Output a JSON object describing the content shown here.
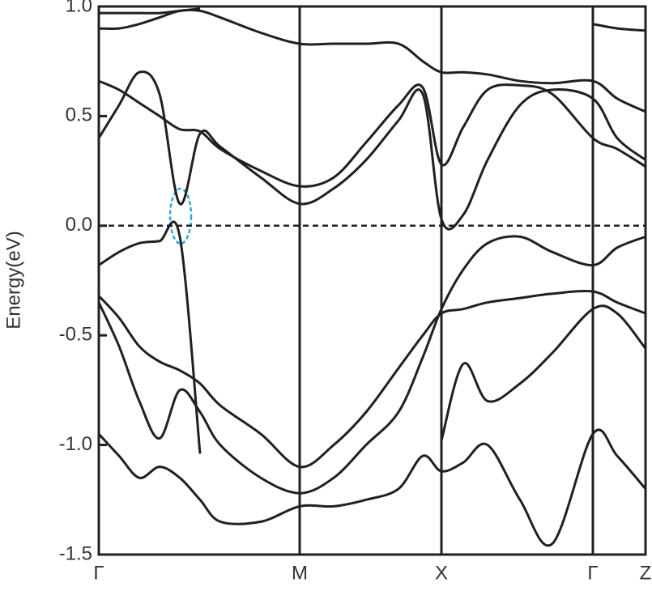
{
  "chart_data": {
    "type": "line",
    "ylabel": "Energy(eV)",
    "x": [
      0,
      25,
      50,
      75,
      100,
      125,
      150,
      200,
      248,
      290,
      330,
      370,
      400,
      423,
      450,
      480,
      520,
      560,
      610,
      640,
      675
    ],
    "xlim": [
      0,
      675
    ],
    "xticks": [
      {
        "value": 0,
        "label": "Γ"
      },
      {
        "value": 248,
        "label": "M"
      },
      {
        "value": 423,
        "label": "X"
      },
      {
        "value": 610,
        "label": "Γ"
      },
      {
        "value": 675,
        "label": "Z"
      }
    ],
    "ylim": [
      -1.5,
      1.0
    ],
    "yticks": [
      {
        "value": 1.0,
        "label": "1.0"
      },
      {
        "value": 0.5,
        "label": "0.5"
      },
      {
        "value": 0,
        "label": "0.0"
      },
      {
        "value": -0.5,
        "label": "-0.5"
      },
      {
        "value": -1.0,
        "label": "-1.0"
      },
      {
        "value": -1.5,
        "label": "-1.5"
      }
    ],
    "series": [
      {
        "color": "#231f20",
        "values": [
          -0.18,
          -0.12,
          -0.08,
          -0.07,
          -0.05,
          -1.04,
          null,
          null,
          null,
          null,
          null,
          null,
          null,
          null,
          null,
          null,
          null,
          null,
          null,
          null,
          null
        ]
      },
      {
        "color": "#231f20",
        "values": [
          0.4,
          0.55,
          0.7,
          0.6,
          0.1,
          0.42,
          0.36,
          0.22,
          0.1,
          0.17,
          0.3,
          0.48,
          0.6,
          0.03,
          0.05,
          0.3,
          0.55,
          0.62,
          0.58,
          0.4,
          0.3
        ]
      },
      {
        "color": "#231f20",
        "values": [
          0.66,
          0.62,
          0.56,
          0.5,
          0.44,
          0.43,
          0.35,
          0.25,
          0.18,
          0.22,
          0.38,
          0.55,
          0.63,
          0.28,
          0.45,
          0.62,
          0.64,
          0.6,
          0.4,
          0.35,
          0.27
        ]
      },
      {
        "color": "#231f20",
        "values": [
          0.9,
          0.9,
          0.92,
          0.95,
          0.98,
          0.98,
          0.95,
          0.88,
          0.83,
          0.83,
          0.83,
          0.83,
          0.75,
          0.7,
          0.7,
          0.69,
          0.66,
          0.65,
          0.66,
          0.58,
          0.52
        ]
      },
      {
        "color": "#231f20",
        "values": [
          0.97,
          0.97,
          0.97,
          0.97,
          0.98,
          0.99,
          null,
          null,
          null,
          null,
          null,
          null,
          null,
          null,
          null,
          null,
          null,
          null,
          0.92,
          0.9,
          0.89
        ]
      },
      {
        "color": "#231f20",
        "values": [
          -0.32,
          -0.42,
          -0.55,
          -0.62,
          -0.66,
          -0.72,
          -0.82,
          -0.95,
          -1.1,
          -1.0,
          -0.85,
          -0.65,
          -0.5,
          -0.4,
          -0.38,
          -0.35,
          -0.33,
          -0.31,
          -0.3,
          -0.35,
          -0.4
        ]
      },
      {
        "color": "#231f20",
        "values": [
          -0.35,
          -0.55,
          -0.8,
          -0.97,
          -0.75,
          -0.85,
          -1.0,
          -1.15,
          -1.22,
          -1.15,
          -1.0,
          -0.85,
          -0.6,
          -0.38,
          -0.2,
          -0.08,
          -0.05,
          -0.12,
          -0.18,
          -0.1,
          -0.05
        ]
      },
      {
        "color": "#231f20",
        "values": [
          -0.95,
          -1.05,
          -1.15,
          -1.1,
          -1.15,
          -1.25,
          -1.35,
          -1.35,
          -1.28,
          -1.28,
          -1.25,
          -1.2,
          -1.05,
          -1.12,
          -1.08,
          -1.0,
          -1.25,
          -1.45,
          -0.95,
          -1.05,
          -1.2
        ]
      },
      {
        "color": "#231f20",
        "values": [
          null,
          null,
          null,
          null,
          null,
          null,
          null,
          null,
          null,
          null,
          null,
          null,
          null,
          -0.98,
          -0.63,
          -0.8,
          -0.72,
          -0.58,
          -0.38,
          -0.4,
          -0.56
        ]
      }
    ]
  }
}
